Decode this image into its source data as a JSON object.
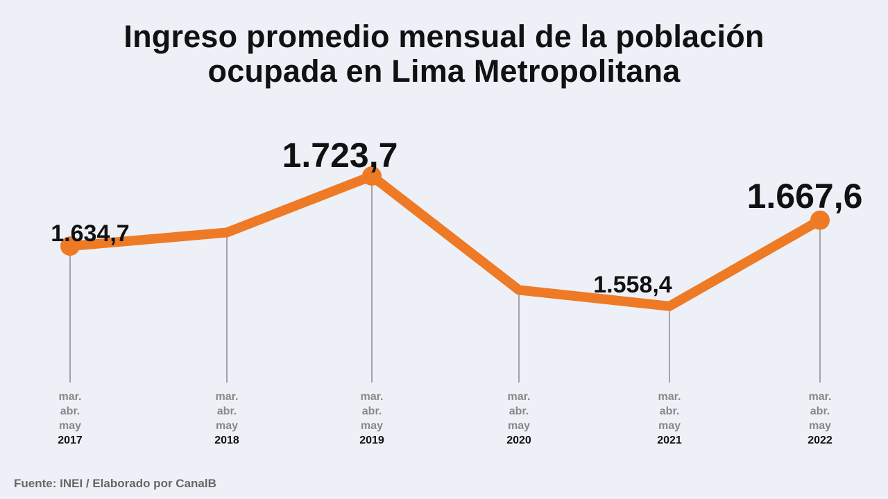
{
  "title": {
    "line1": "Ingreso promedio mensual de la población",
    "line2": "ocupada en Lima Metropolitana"
  },
  "source": "Fuente: INEI / Elaborado por CanalB",
  "colors": {
    "line": "#ee7a25",
    "text": "#111111",
    "muted": "#888888",
    "background": "#edf1f7"
  },
  "chart_data": {
    "type": "line",
    "title": "Ingreso promedio mensual de la población ocupada en Lima Metropolitana",
    "period_label": [
      "mar.",
      "abr.",
      "may"
    ],
    "categories": [
      "2017",
      "2018",
      "2019",
      "2020",
      "2021",
      "2022"
    ],
    "values": [
      1634.7,
      1652,
      1723.7,
      1579,
      1558.4,
      1667.6
    ],
    "labels": [
      "1.634,7",
      "",
      "1.723,7",
      "",
      "1.558,4",
      "1.667,6"
    ],
    "markers": [
      true,
      false,
      true,
      false,
      false,
      true
    ],
    "ylim": [
      1450,
      1780
    ],
    "grid": false
  }
}
